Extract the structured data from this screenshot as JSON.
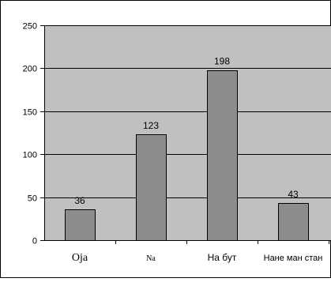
{
  "chart_data": {
    "type": "bar",
    "title": "",
    "xlabel": "",
    "ylabel": "",
    "categories": [
      "Оја",
      "Nа",
      "На бут",
      "Нане ман стан"
    ],
    "values": [
      36,
      123,
      198,
      43
    ],
    "value_labels": [
      "36",
      "123",
      "198",
      "43"
    ],
    "ylim": [
      0,
      250
    ],
    "yticks": [
      0,
      50,
      100,
      150,
      200,
      250
    ],
    "ytick_labels": [
      "0",
      "50",
      "100",
      "150",
      "200",
      "250"
    ],
    "grid": true,
    "legend": "none",
    "colors": {
      "bar": "#8c8c8c",
      "plot_background": "#c0c0c0",
      "gridline": "#000000",
      "frame": "#000000"
    }
  }
}
